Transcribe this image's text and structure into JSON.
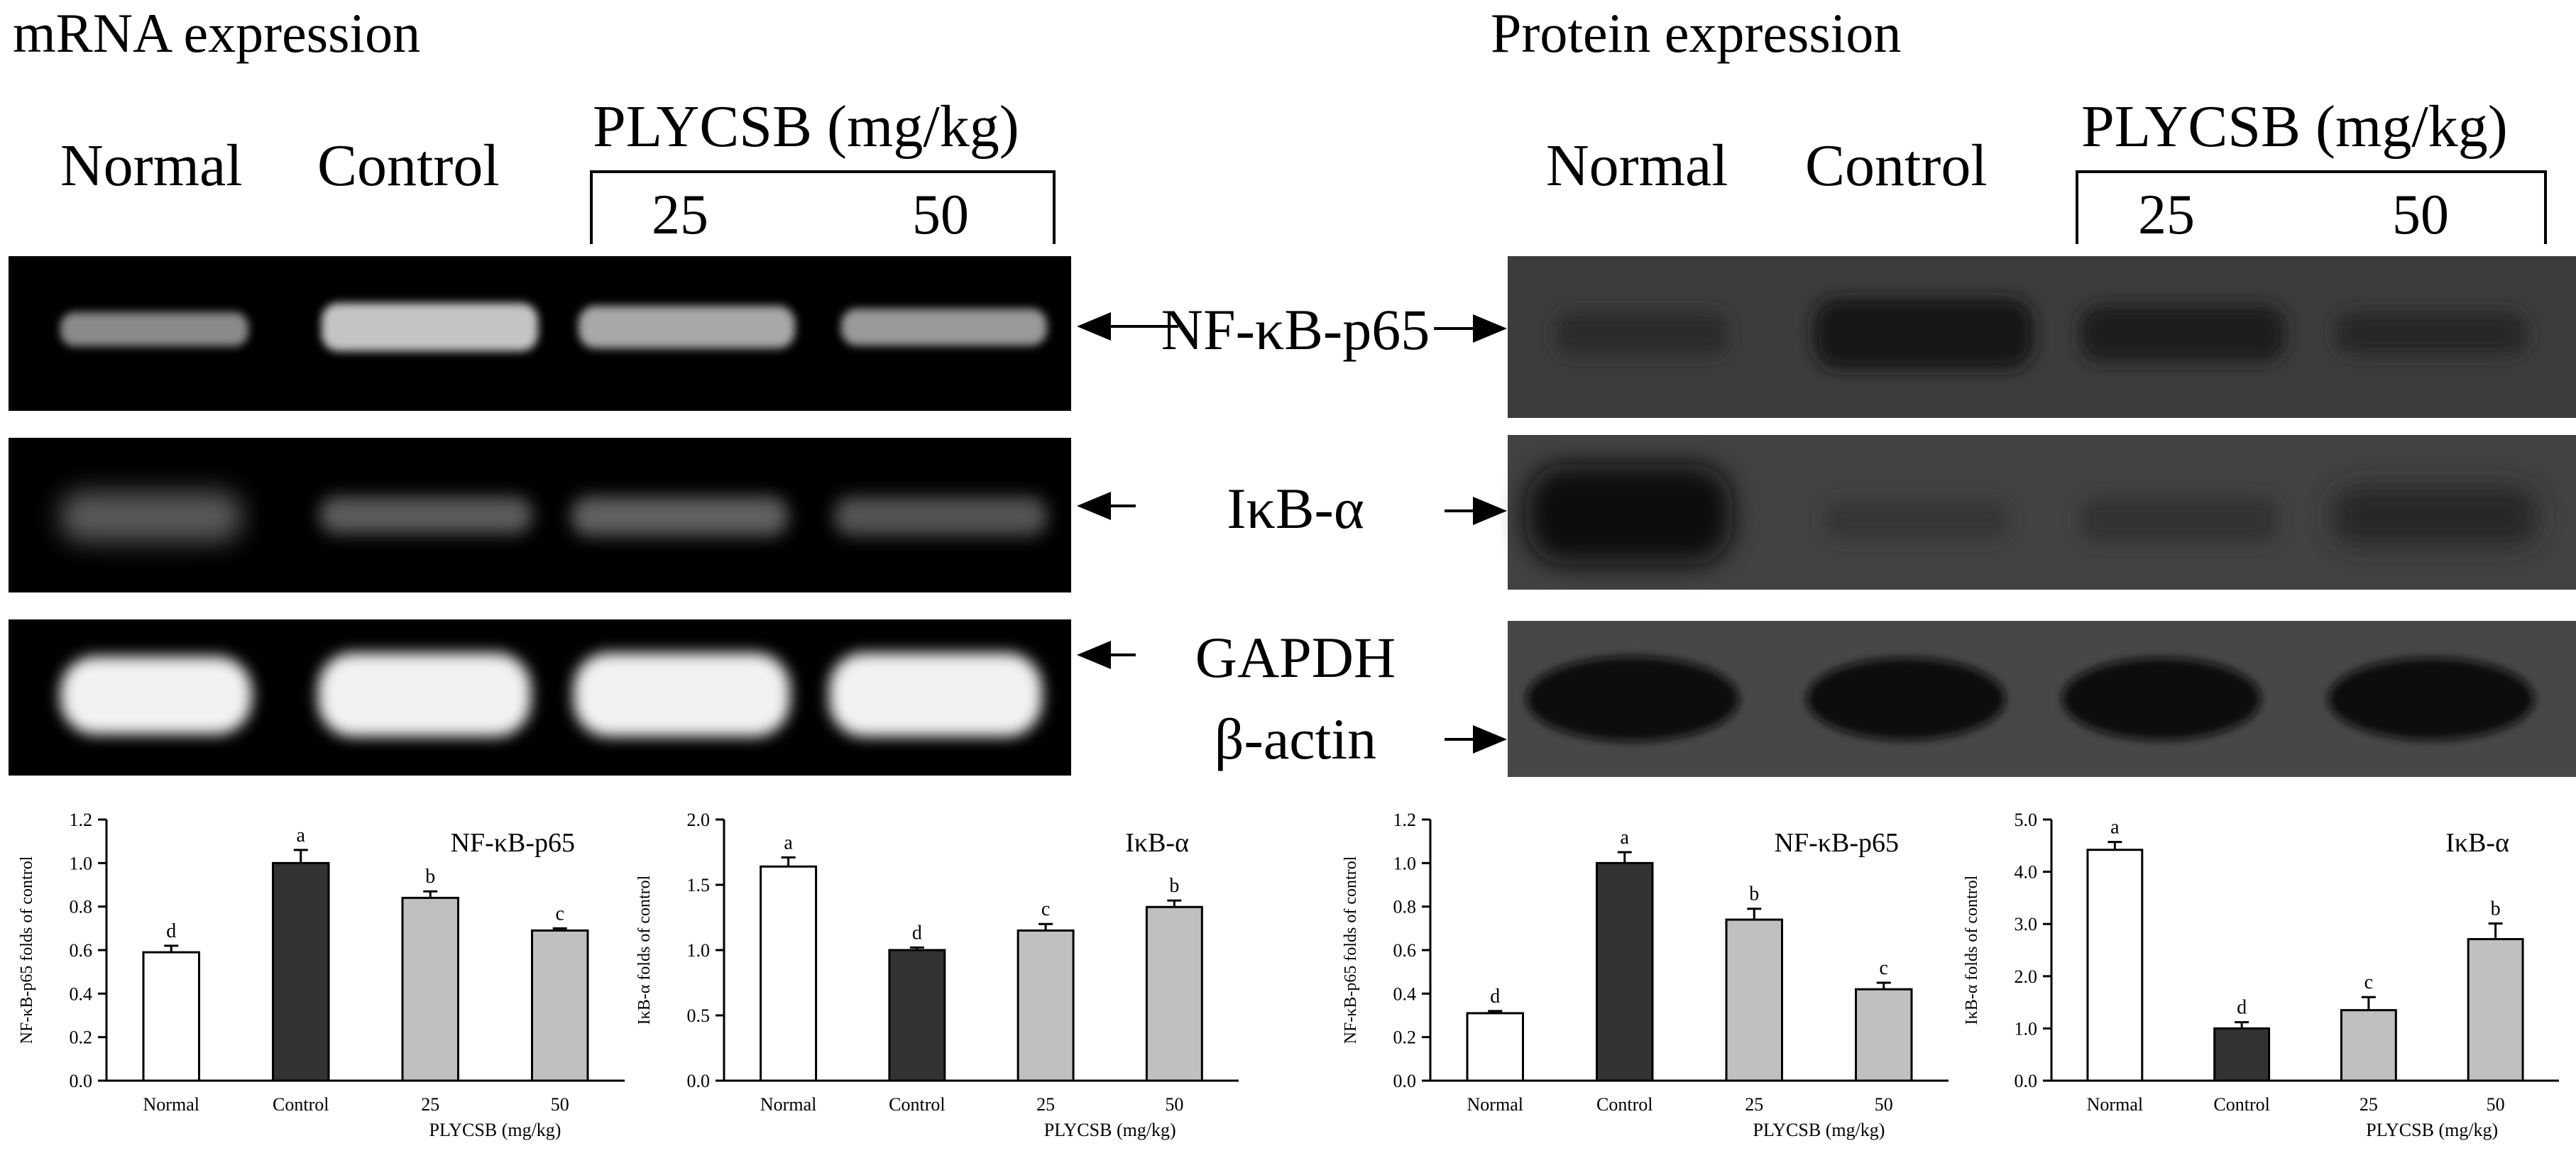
{
  "sections": {
    "mrna_title": "mRNA expression",
    "protein_title": "Protein expression"
  },
  "lanes": {
    "normal": "Normal",
    "control": "Control",
    "treatment": "PLYCSB (mg/kg)",
    "dose_25": "25",
    "dose_50": "50"
  },
  "band_labels": {
    "nfkb": "NF-κB-p65",
    "ikb": "IκB-α",
    "gapdh": "GAPDH",
    "actin": "β-actin"
  },
  "colors": {
    "normal_bar": "#ffffff",
    "control_bar": "#333333",
    "treated_bar": "#c0c0c0",
    "gel_bg": "#000000",
    "blot_bg": "#3a3a3a"
  },
  "chart_data": [
    {
      "type": "bar",
      "panel": "mRNA",
      "title": "NF-κB-p65",
      "ylabel": "NF-κB-p65 folds of control",
      "xlabel": "PLYCSB (mg/kg)",
      "categories": [
        "Normal",
        "Control",
        "25",
        "50"
      ],
      "values": [
        0.59,
        1.0,
        0.84,
        0.69
      ],
      "errors": [
        0.03,
        0.06,
        0.03,
        0.01
      ],
      "letters": [
        "d",
        "a",
        "b",
        "c"
      ],
      "ylim": [
        0,
        1.2
      ],
      "yticks": [
        "0.0",
        "0.2",
        "0.4",
        "0.6",
        "0.8",
        "1.0",
        "1.2"
      ]
    },
    {
      "type": "bar",
      "panel": "mRNA",
      "title": "IκB-α",
      "ylabel": "IκB-α folds of control",
      "xlabel": "PLYCSB (mg/kg)",
      "categories": [
        "Normal",
        "Control",
        "25",
        "50"
      ],
      "values": [
        1.64,
        1.0,
        1.15,
        1.33
      ],
      "errors": [
        0.07,
        0.02,
        0.05,
        0.05
      ],
      "letters": [
        "a",
        "d",
        "c",
        "b"
      ],
      "ylim": [
        0,
        2.0
      ],
      "yticks": [
        "0.0",
        "0.5",
        "1.0",
        "1.5",
        "2.0"
      ]
    },
    {
      "type": "bar",
      "panel": "Protein",
      "title": "NF-κB-p65",
      "ylabel": "NF-κB-p65 folds of control",
      "xlabel": "PLYCSB (mg/kg)",
      "categories": [
        "Normal",
        "Control",
        "25",
        "50"
      ],
      "values": [
        0.31,
        1.0,
        0.74,
        0.42
      ],
      "errors": [
        0.01,
        0.05,
        0.05,
        0.03
      ],
      "letters": [
        "d",
        "a",
        "b",
        "c"
      ],
      "ylim": [
        0,
        1.2
      ],
      "yticks": [
        "0.0",
        "0.2",
        "0.4",
        "0.6",
        "0.8",
        "1.0",
        "1.2"
      ]
    },
    {
      "type": "bar",
      "panel": "Protein",
      "title": "IκB-α",
      "ylabel": "IκB-α folds of control",
      "xlabel": "PLYCSB (mg/kg)",
      "categories": [
        "Normal",
        "Control",
        "25",
        "50"
      ],
      "values": [
        4.42,
        1.0,
        1.35,
        2.71
      ],
      "errors": [
        0.15,
        0.12,
        0.25,
        0.3
      ],
      "letters": [
        "a",
        "d",
        "c",
        "b"
      ],
      "ylim": [
        0,
        5.0
      ],
      "yticks": [
        "0.0",
        "1.0",
        "2.0",
        "3.0",
        "4.0",
        "5.0"
      ]
    }
  ]
}
